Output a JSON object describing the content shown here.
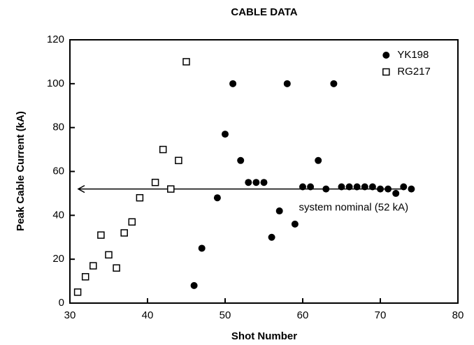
{
  "chart_data": {
    "type": "scatter",
    "title": "CABLE DATA",
    "x_label": "Shot Number",
    "y_label": "Peak Cable Current  (kA)",
    "xlim": [
      30,
      80
    ],
    "xticks": [
      30,
      40,
      50,
      60,
      70,
      80
    ],
    "ylim": [
      0,
      120
    ],
    "yticks": [
      0,
      20,
      40,
      60,
      80,
      100,
      120
    ],
    "grid": false,
    "legend": "upper right",
    "series": [
      {
        "name": "YK198",
        "color": "#000000",
        "marker": "filled-circle",
        "x": [
          46,
          47,
          49,
          50,
          51,
          52,
          53,
          54,
          55,
          56,
          57,
          58,
          59,
          60,
          61,
          62,
          63,
          64,
          65,
          66,
          67,
          68,
          69,
          70,
          71,
          72,
          73,
          74
        ],
        "values": [
          8,
          25,
          48,
          77,
          100,
          65,
          55,
          55,
          55,
          30,
          42,
          100,
          36,
          53,
          53,
          65,
          52,
          100,
          53,
          53,
          53,
          53,
          53,
          52,
          52,
          50,
          53,
          52
        ]
      },
      {
        "name": "RG217",
        "color": "#000000",
        "marker": "open-square",
        "x": [
          31,
          32,
          33,
          34,
          35,
          36,
          37,
          38,
          39,
          41,
          42,
          43,
          44,
          45
        ],
        "values": [
          5,
          12,
          17,
          31,
          22,
          16,
          32,
          37,
          48,
          55,
          70,
          52,
          65,
          110
        ]
      }
    ],
    "reference_line": {
      "value": 52,
      "label": "system nominal (52 kA)"
    }
  }
}
